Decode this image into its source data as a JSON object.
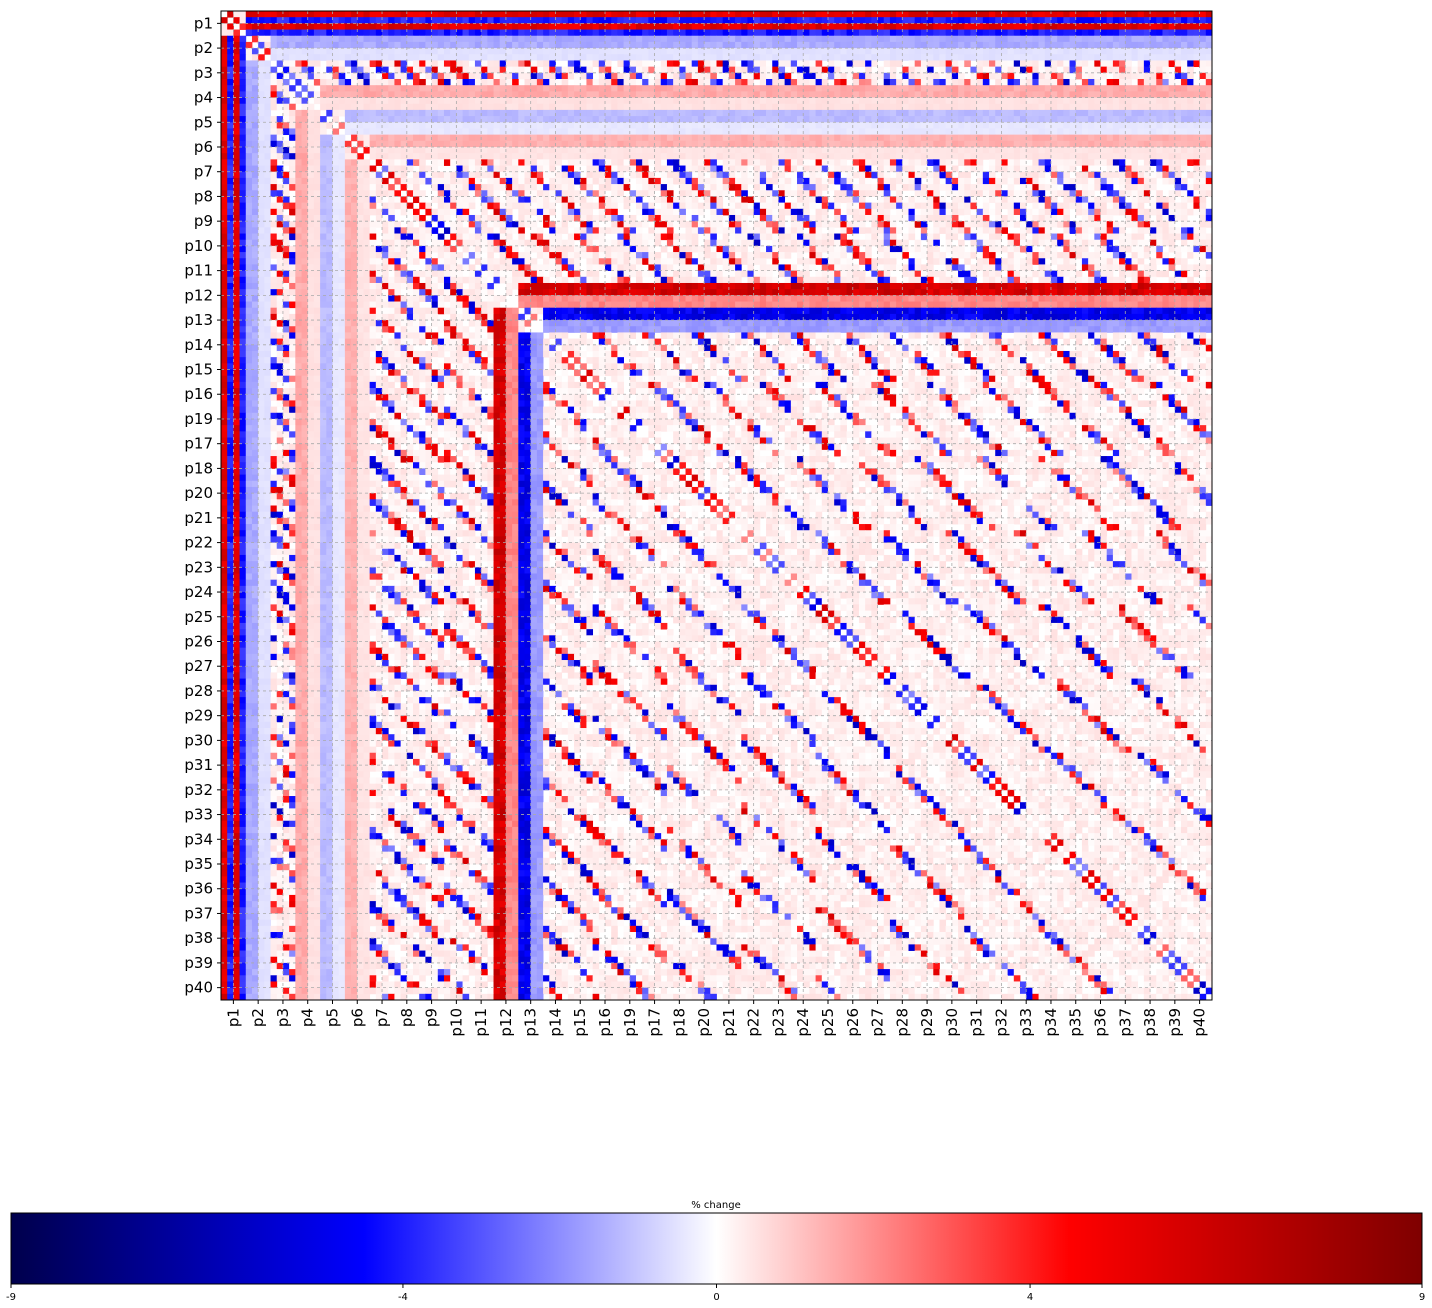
{
  "chart_data": {
    "type": "heatmap",
    "title": "",
    "xlabel": "",
    "ylabel": "",
    "row_labels": [
      "p1",
      "p2",
      "p3",
      "p4",
      "p5",
      "p6",
      "p7",
      "p8",
      "p9",
      "p10",
      "p11",
      "p12",
      "p13",
      "p14",
      "p15",
      "p16",
      "p19",
      "p17",
      "p18",
      "p20",
      "p21",
      "p22",
      "p23",
      "p24",
      "p25",
      "p26",
      "p27",
      "p28",
      "p29",
      "p30",
      "p31",
      "p32",
      "p33",
      "p34",
      "p35",
      "p36",
      "p37",
      "p38",
      "p39",
      "p40"
    ],
    "col_labels": [
      "p1",
      "p2",
      "p3",
      "p4",
      "p5",
      "p6",
      "p7",
      "p8",
      "p9",
      "p10",
      "p11",
      "p12",
      "p13",
      "p14",
      "p15",
      "p16",
      "p19",
      "p17",
      "p18",
      "p20",
      "p21",
      "p22",
      "p23",
      "p24",
      "p25",
      "p26",
      "p27",
      "p28",
      "p29",
      "p30",
      "p31",
      "p32",
      "p33",
      "p34",
      "p35",
      "p36",
      "p37",
      "p38",
      "p39",
      "p40"
    ],
    "cells_per_label": 4,
    "grid": true,
    "colormap": "seismic",
    "colorbar": {
      "label": "% change",
      "min": -9,
      "max": 9,
      "ticks": [
        "-9",
        "-4",
        "0",
        "4",
        "9"
      ],
      "tick_values": [
        -9,
        -4,
        0,
        4,
        9
      ],
      "placement": "bottom",
      "colors": [
        "#00004c",
        "#0000ff",
        "#ffffff",
        "#ff0000",
        "#7f0000"
      ]
    },
    "structure": {
      "note_rows": "upper triangle: row blocks p1..p13 extend bands to the right; lower triangle mirrors",
      "bands": [
        {
          "row": "p1",
          "value": 5.5
        },
        {
          "row": "p1",
          "value": -4.0
        },
        {
          "row": "p2",
          "value": -1.5
        },
        {
          "row": "p4",
          "value": 1.5
        },
        {
          "row": "p5",
          "value": -1.2
        },
        {
          "row": "p6",
          "value": 1.4
        },
        {
          "row": "p12",
          "value": 6.0
        },
        {
          "row": "p13",
          "value": -5.0
        }
      ],
      "diagonal_tracks": "alternating red/blue cells of magnitude 2-6 along stepped diagonals in every block"
    }
  }
}
